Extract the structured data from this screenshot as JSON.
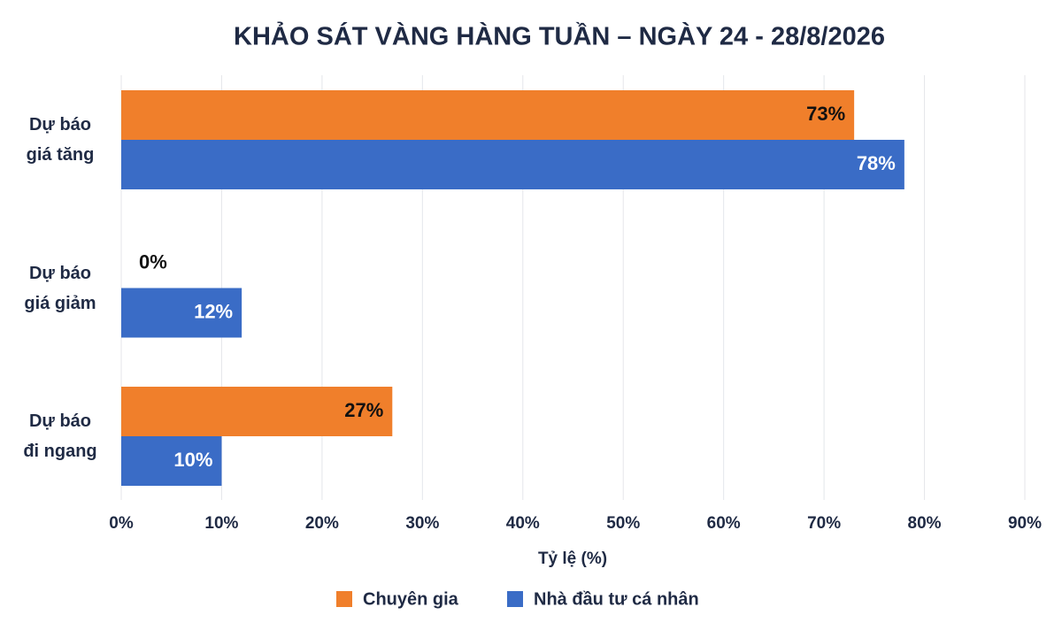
{
  "chart_data": {
    "type": "hbar",
    "title": "KHẢO SÁT VÀNG HÀNG TUẦN – NGÀY 24 - 28/8/2026",
    "x_label": "Tỷ lệ (%)",
    "categories": [
      "Dự báo\ngiá tăng",
      "Dự báo\ngiá giảm",
      "Dự báo\nđi ngang"
    ],
    "series": [
      {
        "name": "Chuyên gia",
        "color": "#f07f2b",
        "values": [
          73,
          0,
          27
        ],
        "value_labels": [
          "73%",
          "0%",
          "27%"
        ]
      },
      {
        "name": "Nhà đầu tư cá nhân",
        "color": "#3a6cc6",
        "values": [
          78,
          12,
          10
        ],
        "value_labels": [
          "78%",
          "12%",
          "10%"
        ]
      }
    ],
    "xlim": [
      0,
      90
    ],
    "xticks": [
      {
        "value": 0,
        "label": "0%"
      },
      {
        "value": 10,
        "label": "10%"
      },
      {
        "value": 20,
        "label": "20%"
      },
      {
        "value": 30,
        "label": "30%"
      },
      {
        "value": 40,
        "label": "40%"
      },
      {
        "value": 50,
        "label": "50%"
      },
      {
        "value": 60,
        "label": "60%"
      },
      {
        "value": 70,
        "label": "70%"
      },
      {
        "value": 80,
        "label": "80%"
      },
      {
        "value": 90,
        "label": "90%"
      }
    ],
    "grid": true,
    "legend": "bottom"
  }
}
